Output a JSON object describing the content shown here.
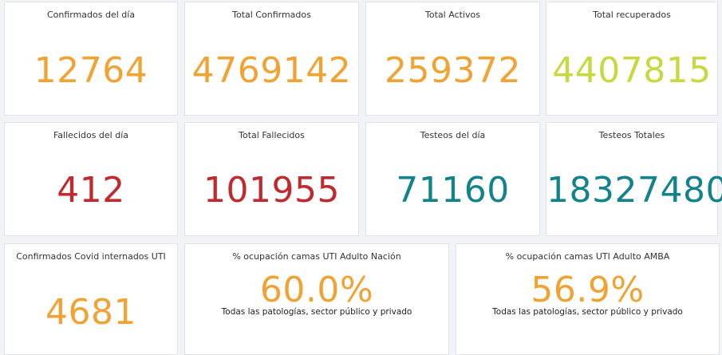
{
  "cards": [
    {
      "title": "Confirmados del día",
      "value": "12764"
    },
    {
      "title": "Total Confirmados",
      "value": "4769142"
    },
    {
      "title": "Total Activos",
      "value": "259372"
    },
    {
      "title": "Total recuperados",
      "value": "4407815"
    },
    {
      "title": "Fallecidos del día",
      "value": "412"
    },
    {
      "title": "Total Fallecidos",
      "value": "101955"
    },
    {
      "title": "Testeos del día",
      "value": "71160"
    },
    {
      "title": "Testeos Totales",
      "value": "18327480"
    },
    {
      "title": "Confirmados Covid internados UTI",
      "value": "4681"
    },
    {
      "title": "% ocupación camas UTI Adulto Nación",
      "value": "60.0%",
      "subtitle": "Todas las patologías, sector público y privado"
    },
    {
      "title": "% ocupación camas UTI Adulto AMBA",
      "value": "56.9%",
      "subtitle": "Todas las patologías, sector público y privado"
    }
  ],
  "colors": {
    "orange": "#f0a332",
    "lime": "#c8d841",
    "red": "#c0292e",
    "teal": "#12838a"
  }
}
